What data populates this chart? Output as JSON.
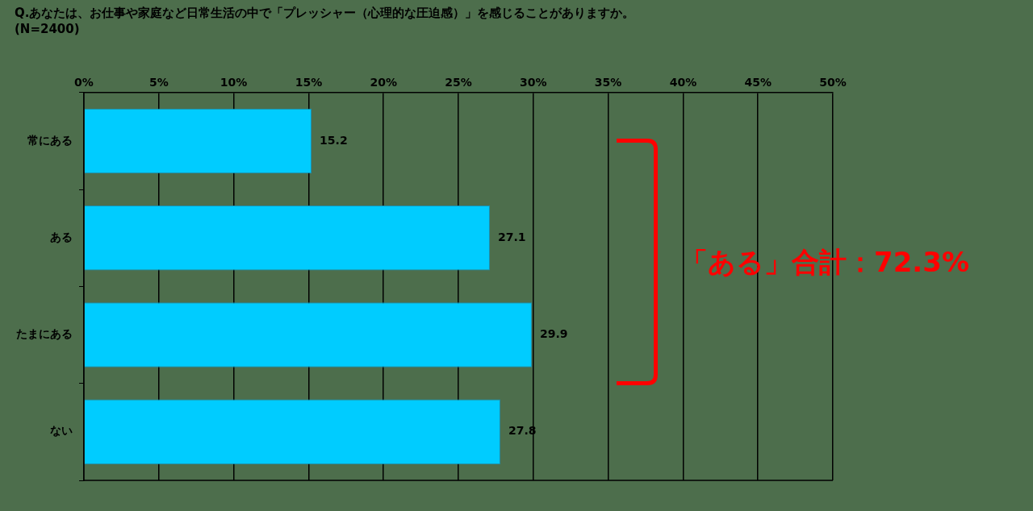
{
  "chart_data": {
    "type": "bar",
    "orientation": "horizontal",
    "title": "Q.あなたは、お仕事や家庭など日常生活の中で「プレッシャー（心理的な圧迫感）」を感じることがありますか。",
    "subtitle": "(N=2400)",
    "categories": [
      "常にある",
      "ある",
      "たまにある",
      "ない"
    ],
    "values": [
      15.2,
      27.1,
      29.9,
      27.8
    ],
    "color": "#00ccff",
    "xlim": [
      0,
      50
    ],
    "xticks": [
      {
        "value": 0,
        "label": "0%"
      },
      {
        "value": 5,
        "label": "5%"
      },
      {
        "value": 10,
        "label": "10%"
      },
      {
        "value": 15,
        "label": "15%"
      },
      {
        "value": 20,
        "label": "20%"
      },
      {
        "value": 25,
        "label": "25%"
      },
      {
        "value": 30,
        "label": "30%"
      },
      {
        "value": 35,
        "label": "35%"
      },
      {
        "value": 40,
        "label": "40%"
      },
      {
        "value": 45,
        "label": "45%"
      },
      {
        "value": 50,
        "label": "50%"
      }
    ],
    "grid": "x",
    "legend": false,
    "data_labels": true,
    "annotations": [
      "「ある」合計：72.3%"
    ]
  }
}
